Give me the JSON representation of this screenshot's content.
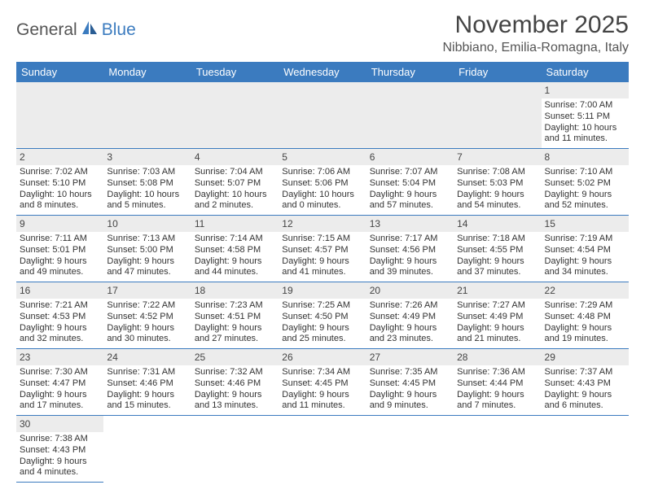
{
  "logo": {
    "part1": "General",
    "part2": "Blue"
  },
  "title": "November 2025",
  "location": "Nibbiano, Emilia-Romagna, Italy",
  "colors": {
    "header_bg": "#3b7bbf",
    "header_text": "#ffffff",
    "daynum_bg": "#ececec",
    "cell_border": "#3b7bbf",
    "text": "#333333",
    "title_text": "#444444",
    "logo_gray": "#555555",
    "logo_blue": "#3b7bbf"
  },
  "weekdays": [
    "Sunday",
    "Monday",
    "Tuesday",
    "Wednesday",
    "Thursday",
    "Friday",
    "Saturday"
  ],
  "weeks": [
    [
      null,
      null,
      null,
      null,
      null,
      null,
      {
        "d": "1",
        "sr": "7:00 AM",
        "ss": "5:11 PM",
        "dl": "10 hours and 11 minutes."
      }
    ],
    [
      {
        "d": "2",
        "sr": "7:02 AM",
        "ss": "5:10 PM",
        "dl": "10 hours and 8 minutes."
      },
      {
        "d": "3",
        "sr": "7:03 AM",
        "ss": "5:08 PM",
        "dl": "10 hours and 5 minutes."
      },
      {
        "d": "4",
        "sr": "7:04 AM",
        "ss": "5:07 PM",
        "dl": "10 hours and 2 minutes."
      },
      {
        "d": "5",
        "sr": "7:06 AM",
        "ss": "5:06 PM",
        "dl": "10 hours and 0 minutes."
      },
      {
        "d": "6",
        "sr": "7:07 AM",
        "ss": "5:04 PM",
        "dl": "9 hours and 57 minutes."
      },
      {
        "d": "7",
        "sr": "7:08 AM",
        "ss": "5:03 PM",
        "dl": "9 hours and 54 minutes."
      },
      {
        "d": "8",
        "sr": "7:10 AM",
        "ss": "5:02 PM",
        "dl": "9 hours and 52 minutes."
      }
    ],
    [
      {
        "d": "9",
        "sr": "7:11 AM",
        "ss": "5:01 PM",
        "dl": "9 hours and 49 minutes."
      },
      {
        "d": "10",
        "sr": "7:13 AM",
        "ss": "5:00 PM",
        "dl": "9 hours and 47 minutes."
      },
      {
        "d": "11",
        "sr": "7:14 AM",
        "ss": "4:58 PM",
        "dl": "9 hours and 44 minutes."
      },
      {
        "d": "12",
        "sr": "7:15 AM",
        "ss": "4:57 PM",
        "dl": "9 hours and 41 minutes."
      },
      {
        "d": "13",
        "sr": "7:17 AM",
        "ss": "4:56 PM",
        "dl": "9 hours and 39 minutes."
      },
      {
        "d": "14",
        "sr": "7:18 AM",
        "ss": "4:55 PM",
        "dl": "9 hours and 37 minutes."
      },
      {
        "d": "15",
        "sr": "7:19 AM",
        "ss": "4:54 PM",
        "dl": "9 hours and 34 minutes."
      }
    ],
    [
      {
        "d": "16",
        "sr": "7:21 AM",
        "ss": "4:53 PM",
        "dl": "9 hours and 32 minutes."
      },
      {
        "d": "17",
        "sr": "7:22 AM",
        "ss": "4:52 PM",
        "dl": "9 hours and 30 minutes."
      },
      {
        "d": "18",
        "sr": "7:23 AM",
        "ss": "4:51 PM",
        "dl": "9 hours and 27 minutes."
      },
      {
        "d": "19",
        "sr": "7:25 AM",
        "ss": "4:50 PM",
        "dl": "9 hours and 25 minutes."
      },
      {
        "d": "20",
        "sr": "7:26 AM",
        "ss": "4:49 PM",
        "dl": "9 hours and 23 minutes."
      },
      {
        "d": "21",
        "sr": "7:27 AM",
        "ss": "4:49 PM",
        "dl": "9 hours and 21 minutes."
      },
      {
        "d": "22",
        "sr": "7:29 AM",
        "ss": "4:48 PM",
        "dl": "9 hours and 19 minutes."
      }
    ],
    [
      {
        "d": "23",
        "sr": "7:30 AM",
        "ss": "4:47 PM",
        "dl": "9 hours and 17 minutes."
      },
      {
        "d": "24",
        "sr": "7:31 AM",
        "ss": "4:46 PM",
        "dl": "9 hours and 15 minutes."
      },
      {
        "d": "25",
        "sr": "7:32 AM",
        "ss": "4:46 PM",
        "dl": "9 hours and 13 minutes."
      },
      {
        "d": "26",
        "sr": "7:34 AM",
        "ss": "4:45 PM",
        "dl": "9 hours and 11 minutes."
      },
      {
        "d": "27",
        "sr": "7:35 AM",
        "ss": "4:45 PM",
        "dl": "9 hours and 9 minutes."
      },
      {
        "d": "28",
        "sr": "7:36 AM",
        "ss": "4:44 PM",
        "dl": "9 hours and 7 minutes."
      },
      {
        "d": "29",
        "sr": "7:37 AM",
        "ss": "4:43 PM",
        "dl": "9 hours and 6 minutes."
      }
    ],
    [
      {
        "d": "30",
        "sr": "7:38 AM",
        "ss": "4:43 PM",
        "dl": "9 hours and 4 minutes."
      },
      null,
      null,
      null,
      null,
      null,
      null
    ]
  ],
  "labels": {
    "sunrise": "Sunrise:",
    "sunset": "Sunset:",
    "daylight": "Daylight:"
  }
}
